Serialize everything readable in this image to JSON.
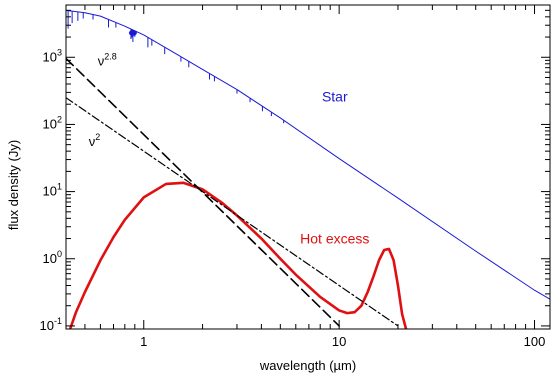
{
  "chart_data": {
    "type": "line",
    "title": "",
    "xlabel": "wavelength (µm)",
    "ylabel": "flux density (Jy)",
    "xscale": "log",
    "yscale": "log",
    "xlim": [
      0.4,
      120
    ],
    "ylim": [
      0.09,
      6000
    ],
    "x_ticks": [
      {
        "value": 1,
        "label": "1"
      },
      {
        "value": 10,
        "label": "10"
      },
      {
        "value": 100,
        "label": "100"
      }
    ],
    "y_ticks": [
      {
        "value": 0.1,
        "base": "10",
        "exp": "-1"
      },
      {
        "value": 1,
        "base": "10",
        "exp": "0"
      },
      {
        "value": 10,
        "base": "10",
        "exp": "1"
      },
      {
        "value": 100,
        "base": "10",
        "exp": "2"
      },
      {
        "value": 1000,
        "base": "10",
        "exp": "3"
      }
    ],
    "grid": false,
    "series": [
      {
        "name": "Star",
        "color": "#1a1ad6",
        "style": "solid",
        "width": 1,
        "label_at": [
          9.5,
          220
        ],
        "x": [
          0.4,
          0.5,
          0.6,
          0.8,
          1.0,
          1.5,
          2.0,
          3.0,
          5.0,
          10.0,
          20.0,
          50.0,
          100.0,
          120.0
        ],
        "y": [
          5000,
          4600,
          4100,
          2900,
          2150,
          1080,
          660,
          330,
          125,
          31,
          8.0,
          1.3,
          0.34,
          0.25
        ]
      },
      {
        "name": "Hot excess",
        "color": "#e01010",
        "style": "solid",
        "width": 2.6,
        "label_at": [
          9.5,
          1.7
        ],
        "x": [
          0.42,
          0.45,
          0.5,
          0.6,
          0.7,
          0.8,
          1.0,
          1.3,
          1.6,
          2.0,
          2.5,
          3.0,
          4.0,
          5.0,
          6.0,
          8.0,
          10.0,
          11.0,
          12.0,
          13.0,
          14.0,
          15.0,
          16.0,
          17.0,
          18.0,
          19.0,
          20.0,
          21.0,
          22.0
        ],
        "y": [
          0.09,
          0.16,
          0.32,
          0.95,
          2.1,
          3.8,
          8.2,
          13.0,
          13.5,
          10.8,
          6.9,
          4.4,
          2.0,
          1.0,
          0.58,
          0.27,
          0.17,
          0.155,
          0.16,
          0.2,
          0.32,
          0.55,
          0.95,
          1.35,
          1.4,
          0.95,
          0.4,
          0.15,
          0.09
        ]
      },
      {
        "name": "ν^2.8",
        "color": "#000000",
        "style": "dashed",
        "width": 1.6,
        "x": [
          0.4,
          10.0
        ],
        "y": [
          960,
          0.1
        ]
      },
      {
        "name": "ν^2",
        "color": "#000000",
        "style": "dashdot",
        "width": 1.2,
        "x": [
          0.4,
          20.0
        ],
        "y": [
          250,
          0.1
        ]
      }
    ],
    "annotations": [
      {
        "id": "nu28",
        "base": "ν",
        "exp": "2.8",
        "at": [
          0.65,
          750
        ]
      },
      {
        "id": "nu2",
        "base": "ν",
        "exp": "2",
        "at": [
          0.56,
          48
        ]
      }
    ]
  }
}
